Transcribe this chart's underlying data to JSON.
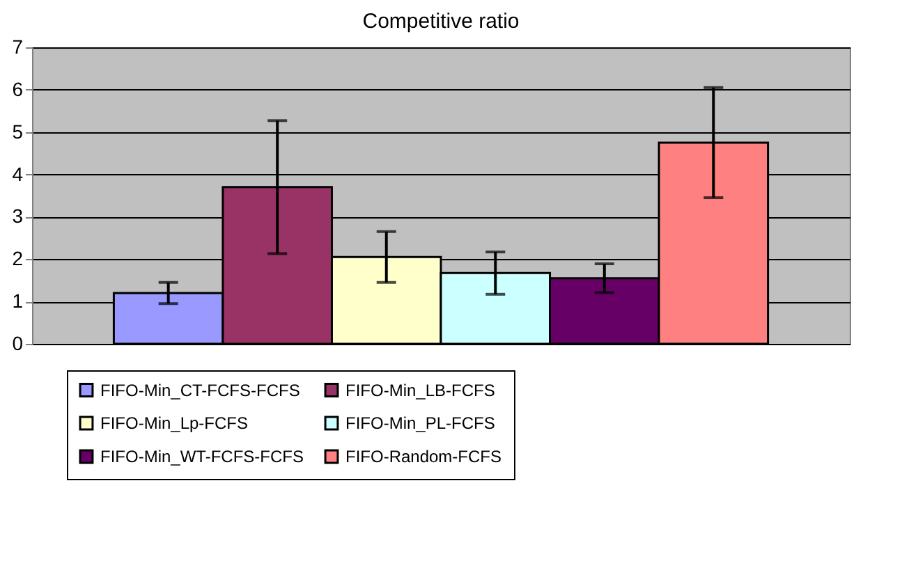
{
  "chart_data": {
    "type": "bar",
    "title": "Competitive ratio",
    "categories": [
      null
    ],
    "series": [
      {
        "name": "FIFO-Min_CT-FCFS-FCFS",
        "color": "#9999ff",
        "values": [
          1.2
        ],
        "errors": [
          0.25
        ]
      },
      {
        "name": "FIFO-Min_LB-FCFS",
        "color": "#993366",
        "values": [
          3.7
        ],
        "errors": [
          1.57
        ]
      },
      {
        "name": "FIFO-Min_Lp-FCFS",
        "color": "#ffffcc",
        "values": [
          2.05
        ],
        "errors": [
          0.6
        ]
      },
      {
        "name": "FIFO-Min_PL-FCFS",
        "color": "#ccffff",
        "values": [
          1.67
        ],
        "errors": [
          0.5
        ]
      },
      {
        "name": "FIFO-Min_WT-FCFS-FCFS",
        "color": "#660066",
        "values": [
          1.55
        ],
        "errors": [
          0.34
        ]
      },
      {
        "name": "FIFO-Random-FCFS",
        "color": "#ff8080",
        "values": [
          4.75
        ],
        "errors": [
          1.3
        ]
      }
    ],
    "ylim": [
      0,
      7
    ],
    "yticks": [
      0,
      1,
      2,
      3,
      4,
      5,
      6,
      7
    ],
    "grid": "y",
    "legend": "bottom",
    "tick_labels": "y"
  }
}
